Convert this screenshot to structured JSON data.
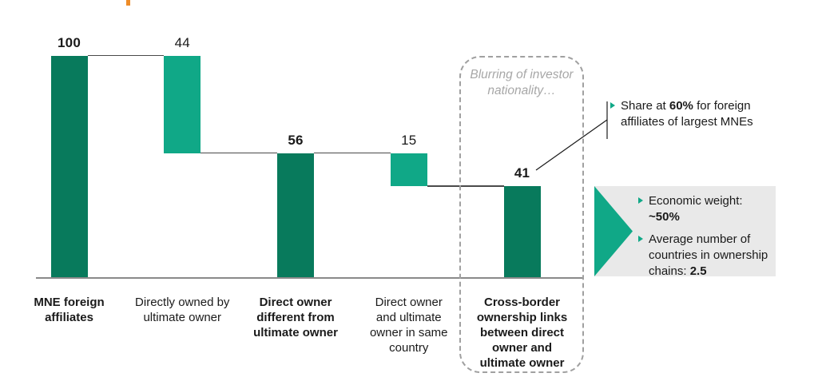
{
  "colors": {
    "dark_green": "#087a5c",
    "teal": "#10a887",
    "orange": "#ee8c28",
    "panel_gray": "#e9e9e9",
    "dashed_border": "#a0a0a0",
    "axis_gray": "#8a8a8a",
    "connector_gray": "#4a4a4a",
    "annotation_gray": "#a7a7a7",
    "text": "#1a1a1a"
  },
  "chart_data": {
    "type": "bar",
    "subtype": "waterfall",
    "ylim": [
      0,
      100
    ],
    "grid": false,
    "bars": [
      {
        "label_lines": [
          "MNE foreign",
          "affiliates"
        ],
        "value": 100,
        "from": 0,
        "to": 100,
        "color_key": "dark_green",
        "label_bold": true,
        "value_bold": true
      },
      {
        "label_lines": [
          "Directly owned by",
          "ultimate owner"
        ],
        "value": 44,
        "from": 56,
        "to": 100,
        "color_key": "teal",
        "label_bold": false,
        "value_bold": false
      },
      {
        "label_lines": [
          "Direct owner",
          "different from",
          "ultimate owner"
        ],
        "value": 56,
        "from": 0,
        "to": 56,
        "color_key": "dark_green",
        "label_bold": true,
        "value_bold": true
      },
      {
        "label_lines": [
          "Direct owner",
          "and ultimate",
          "owner in same",
          "country"
        ],
        "value": 15,
        "from": 41,
        "to": 56,
        "color_key": "teal",
        "label_bold": false,
        "value_bold": false
      },
      {
        "label_lines": [
          "Cross-border",
          "ownership links",
          "between direct",
          "owner and",
          "ultimate owner"
        ],
        "value": 41,
        "from": 0,
        "to": 41,
        "color_key": "dark_green",
        "label_bold": true,
        "value_bold": true
      }
    ],
    "annotation_box": {
      "line1": "Blurring of investor",
      "line2": "nationality…"
    }
  },
  "share_callout": {
    "text1": "Share at ",
    "bold": "60%",
    "text2": " for foreign affiliates of largest MNEs"
  },
  "panel": {
    "items": [
      {
        "text": "Economic weight:\n",
        "bold": "~50%"
      },
      {
        "text": "Average number of countries in ownership chains: ",
        "bold": "2.5"
      }
    ]
  }
}
